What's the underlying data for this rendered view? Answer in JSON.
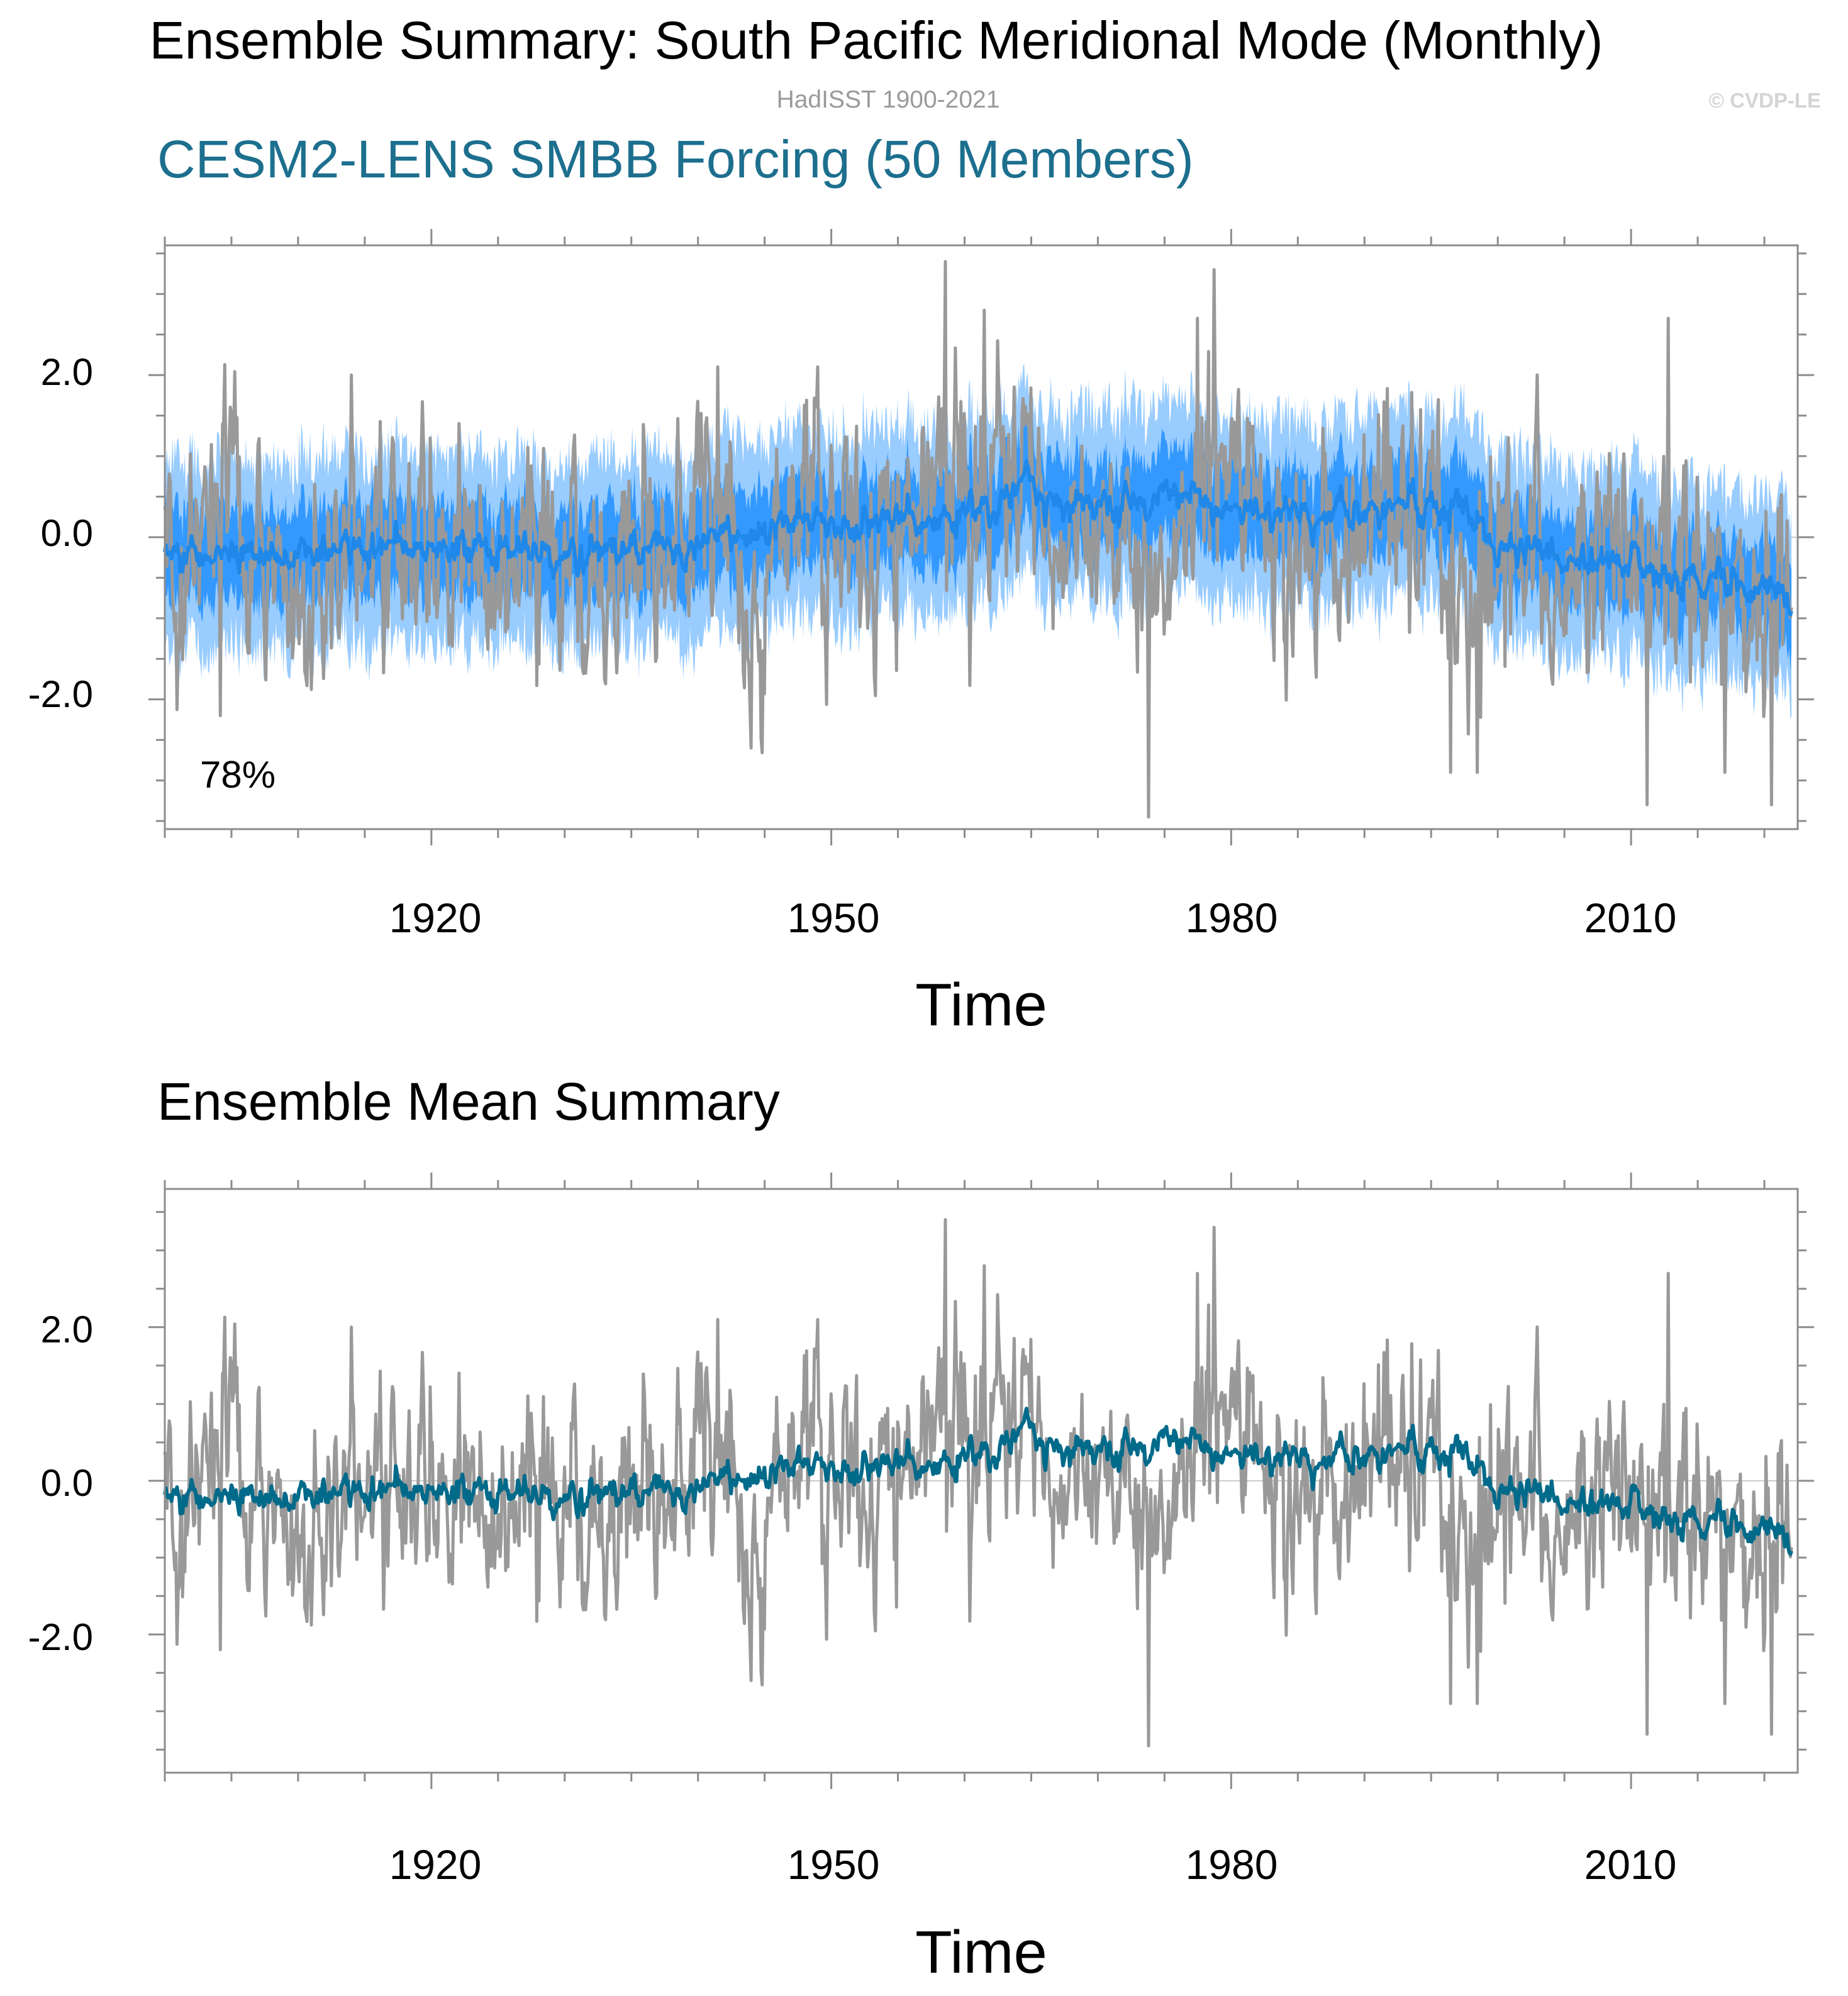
{
  "header": {
    "title": "Ensemble Summary: South Pacific Meridional Mode (Monthly)",
    "subtitle": "HadISST 1900-2021",
    "copyright": "© CVDP-LE"
  },
  "colors": {
    "observations": "#999999",
    "ensemble_mean_top": "#1f88e8",
    "band_inner": "#3399ff",
    "band_outer": "#99ccff",
    "ensemble_mean_bottom": "#006a8a",
    "ensemble_title": "#1d6f8e",
    "zero_line": "#cccccc",
    "frame": "#8c8c8c"
  },
  "chart_data": [
    {
      "type": "line",
      "title": "CESM2-LENS SMBB Forcing (50 Members)",
      "xlabel": "Time",
      "ylabel": "",
      "annotation": "78%",
      "xlim": [
        1900,
        2022.5
      ],
      "ylim": [
        -3.6,
        3.6
      ],
      "xticks": [
        1920,
        1950,
        1980,
        2010
      ],
      "xtick_labels": [
        "1920",
        "1950",
        "1980",
        "2010"
      ],
      "yticks": [
        -2.0,
        0.0,
        2.0
      ],
      "ytick_labels": [
        "-2.0",
        "0.0",
        "2.0"
      ],
      "grid": false,
      "series": [
        {
          "name": "HadISST observations",
          "style": "monthly",
          "x_start": 1900.0,
          "step": 0.0833,
          "anchors_x": [
            1900,
            1902,
            1904,
            1906,
            1908,
            1910,
            1912,
            1914,
            1916,
            1918,
            1920,
            1922,
            1924,
            1926,
            1928,
            1930,
            1932,
            1934,
            1936,
            1938,
            1940,
            1942,
            1943.5,
            1945,
            1947,
            1949,
            1951,
            1953,
            1955,
            1957,
            1959,
            1961,
            1963,
            1965,
            1967,
            1969,
            1971,
            1973,
            1975,
            1977,
            1979,
            1981,
            1983,
            1985,
            1987,
            1989,
            1991,
            1993,
            1995,
            1997,
            1999,
            2001,
            2003,
            2005,
            2007,
            2009,
            2011,
            2013,
            2015,
            2017,
            2019,
            2021
          ],
          "anchors_y": [
            -0.2,
            -0.5,
            -0.2,
            0.4,
            0.3,
            -0.6,
            -0.3,
            0.2,
            0.1,
            -0.5,
            0.0,
            -0.4,
            -0.1,
            -0.3,
            0.1,
            -0.2,
            -0.5,
            0.0,
            -0.3,
            0.2,
            -0.2,
            0.4,
            -1.4,
            -0.6,
            0.1,
            0.5,
            0.2,
            -0.3,
            0.4,
            0.6,
            1.1,
            0.4,
            0.8,
            0.6,
            0.4,
            0.2,
            -0.3,
            -0.6,
            -0.2,
            0.3,
            1.6,
            0.8,
            0.3,
            -0.2,
            0.2,
            -0.5,
            0.4,
            0.0,
            0.3,
            -0.6,
            -0.8,
            0.1,
            -0.4,
            -0.2,
            -0.8,
            0.0,
            -0.9,
            -0.2,
            -0.3,
            -0.7,
            -1.0,
            -0.5
          ],
          "noise_sd": 0.6,
          "min": -3.45,
          "max": 3.45
        },
        {
          "name": "CESM2-LENS ensemble mean",
          "style": "monthly",
          "x_start": 1900.0,
          "step": 0.0833,
          "anchors_x": [
            1900,
            1905,
            1910,
            1915,
            1920,
            1925,
            1930,
            1935,
            1940,
            1945,
            1950,
            1955,
            1960,
            1965,
            1968,
            1972,
            1976,
            1980,
            1985,
            1990,
            1995,
            1997.5,
            2000,
            2005,
            2010,
            2015,
            2020,
            2022
          ],
          "anchors_y": [
            -0.25,
            -0.2,
            -0.15,
            -0.1,
            -0.15,
            -0.2,
            -0.15,
            -0.1,
            -0.05,
            0.1,
            0.15,
            0.2,
            0.3,
            0.55,
            0.45,
            0.35,
            0.45,
            0.3,
            0.3,
            0.35,
            0.35,
            0.35,
            -0.1,
            -0.2,
            -0.35,
            -0.5,
            -0.6,
            -0.7
          ],
          "noise_sd": 0.08
        },
        {
          "name": "Ensemble 25th-75th percentile",
          "style": "band",
          "half_width": 0.55
        },
        {
          "name": "Ensemble 2.5th-97.5th percentile",
          "style": "band",
          "half_width": 1.15
        }
      ]
    },
    {
      "type": "line",
      "title": "Ensemble Mean Summary",
      "xlabel": "Time",
      "ylabel": "",
      "xlim": [
        1900,
        2022.5
      ],
      "ylim": [
        -3.8,
        3.8
      ],
      "xticks": [
        1920,
        1950,
        1980,
        2010
      ],
      "xtick_labels": [
        "1920",
        "1950",
        "1980",
        "2010"
      ],
      "yticks": [
        -2.0,
        0.0,
        2.0
      ],
      "ytick_labels": [
        "-2.0",
        "0.0",
        "2.0"
      ],
      "grid": false,
      "series": [
        {
          "name": "HadISST observations",
          "style": "monthly",
          "same_as": "panel1.observations"
        },
        {
          "name": "CESM2-LENS ensemble mean",
          "style": "monthly",
          "same_as": "panel1.ensemble_mean"
        }
      ]
    }
  ]
}
